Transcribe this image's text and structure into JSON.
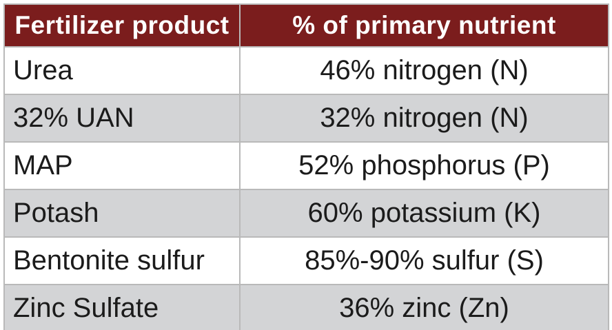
{
  "table": {
    "columns": [
      {
        "label": "Fertilizer product"
      },
      {
        "label": "% of primary nutrient"
      }
    ],
    "rows": [
      {
        "product": "Urea",
        "nutrient": "46% nitrogen (N)"
      },
      {
        "product": "32% UAN",
        "nutrient": "32% nitrogen (N)"
      },
      {
        "product": "MAP",
        "nutrient": "52% phosphorus (P)"
      },
      {
        "product": "Potash",
        "nutrient": "60% potassium (K)"
      },
      {
        "product": "Bentonite sulfur",
        "nutrient": "85%-90% sulfur (S)"
      },
      {
        "product": "Zinc Sulfate",
        "nutrient": "36% zinc (Zn)"
      }
    ]
  },
  "colors": {
    "header_bg": "#7b1d1d",
    "header_text": "#ffffff",
    "row_bg": "#ffffff",
    "row_alt_bg": "#d3d4d6",
    "border": "#b9b9b9",
    "body_text": "#1b1b1b"
  }
}
